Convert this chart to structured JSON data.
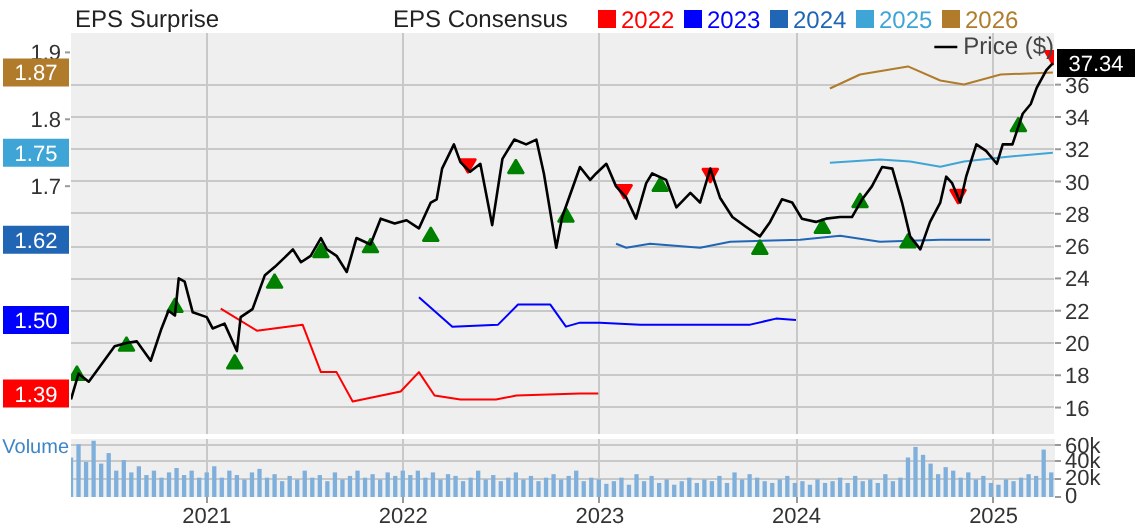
{
  "chart_data": [
    {
      "type": "line",
      "annotations": [
        "EPS Surprise",
        "EPS Consensus"
      ],
      "xlim": [
        "2020-04-24",
        "2025-04-25"
      ],
      "xticks": [
        "2021",
        "2022",
        "2023",
        "2024",
        "2025"
      ],
      "ylim": [
        14.3,
        39.2
      ],
      "yticks": [
        16,
        18,
        20,
        22,
        24,
        26,
        28,
        30,
        32,
        34,
        36,
        {
          "value": 37.34,
          "label": "37.34"
        }
      ],
      "y2lim": [
        1.328,
        1.929
      ],
      "y2ticks": [
        {
          "value": 1.39,
          "label": "1.39"
        },
        {
          "value": 1.5,
          "label": "1.50"
        },
        {
          "value": 1.62,
          "label": "1.62"
        },
        1.7,
        {
          "value": 1.75,
          "label": "1.75"
        },
        1.8,
        {
          "value": 1.87,
          "label": "1.87"
        },
        1.9
      ],
      "grid": true,
      "legend": "top",
      "tick_labels": "y",
      "series": [
        {
          "name": "2022",
          "axis": "y2",
          "color": "#ff0000",
          "x": [
            "2021-01-27",
            "2021-04-04",
            "2021-06-28",
            "2021-08-01",
            "2021-08-30",
            "2021-09-29",
            "2021-12-27",
            "2022-01-30",
            "2022-02-28",
            "2022-04-17",
            "2022-06-22",
            "2022-07-30",
            "2022-11-25",
            "2022-12-29"
          ],
          "values": [
            1.517,
            1.484,
            1.493,
            1.422,
            1.422,
            1.378,
            1.393,
            1.422,
            1.387,
            1.381,
            1.381,
            1.387,
            1.39,
            1.39
          ]
        },
        {
          "name": "2023",
          "axis": "y2",
          "color": "#0000ff",
          "x": [
            "2022-01-30",
            "2022-04-02",
            "2022-06-26",
            "2022-08-02",
            "2022-10-01",
            "2022-10-30",
            "2022-11-25",
            "2023-01-01",
            "2023-03-17",
            "2023-10-07",
            "2023-11-24",
            "2023-12-31"
          ],
          "values": [
            1.534,
            1.49,
            1.493,
            1.523,
            1.523,
            1.49,
            1.496,
            1.496,
            1.493,
            1.493,
            1.502,
            1.5
          ]
        },
        {
          "name": "2024",
          "axis": "y2",
          "color": "#2166b4",
          "x": [
            "2023-01-31",
            "2023-02-19",
            "2023-04-04",
            "2023-07-06",
            "2023-08-31",
            "2024-01-08",
            "2024-03-22",
            "2024-06-04",
            "2024-09-24",
            "2024-12-26"
          ],
          "values": [
            1.614,
            1.608,
            1.614,
            1.608,
            1.617,
            1.62,
            1.626,
            1.617,
            1.62,
            1.62
          ]
        },
        {
          "name": "2025",
          "axis": "y2",
          "color": "#3fa5d6",
          "x": [
            "2024-03-03",
            "2024-06-04",
            "2024-07-30",
            "2024-09-24",
            "2024-11-07",
            "2025-01-14",
            "2025-04-21"
          ],
          "values": [
            1.735,
            1.74,
            1.737,
            1.729,
            1.737,
            1.743,
            1.75
          ]
        },
        {
          "name": "2026",
          "axis": "y2",
          "color": "#b07c2c",
          "x": [
            "2024-03-03",
            "2024-04-28",
            "2024-07-26",
            "2024-09-24",
            "2024-11-07",
            "2025-01-14",
            "2025-04-21"
          ],
          "values": [
            1.846,
            1.867,
            1.879,
            1.858,
            1.852,
            1.867,
            1.87
          ]
        },
        {
          "type": "scatter",
          "marker": "triangle",
          "color": "#008000",
          "x": [
            "2020-05-05",
            "2020-08-05",
            "2020-11-03",
            "2021-02-22",
            "2021-05-07",
            "2021-08-01",
            "2021-11-01",
            "2022-02-21",
            "2022-07-29",
            "2022-10-30",
            "2023-04-23",
            "2023-10-25",
            "2024-02-18",
            "2024-04-28",
            "2024-07-26",
            "2025-02-16"
          ],
          "values": [
            18.0,
            19.8,
            22.2,
            18.7,
            23.7,
            25.6,
            25.9,
            26.6,
            30.8,
            27.8,
            29.7,
            25.8,
            27.1,
            28.7,
            26.2,
            33.4
          ]
        },
        {
          "type": "scatter",
          "marker": "triangle_down",
          "color": "#ff0000",
          "x": [
            "2022-05-01",
            "2023-02-15",
            "2023-07-25",
            "2024-10-27",
            "2025-04-21"
          ],
          "values": [
            31.1,
            29.5,
            30.5,
            29.2,
            37.8
          ]
        },
        {
          "name": "Price ($)",
          "color": "#000000",
          "x": [
            "2020-04-24",
            "2020-05-08",
            "2020-05-27",
            "2020-06-18",
            "2020-07-14",
            "2020-08-05",
            "2020-08-24",
            "2020-09-19",
            "2020-10-08",
            "2020-10-22",
            "2020-11-03",
            "2020-11-10",
            "2020-11-21",
            "2020-12-06",
            "2021-01-01",
            "2021-01-12",
            "2021-02-03",
            "2021-02-26",
            "2021-03-05",
            "2021-03-27",
            "2021-04-19",
            "2021-05-07",
            "2021-05-26",
            "2021-06-10",
            "2021-06-25",
            "2021-07-13",
            "2021-08-01",
            "2021-08-12",
            "2021-08-30",
            "2021-09-18",
            "2021-10-06",
            "2021-11-01",
            "2021-11-20",
            "2021-12-16",
            "2022-01-07",
            "2022-01-30",
            "2022-02-21",
            "2022-03-04",
            "2022-03-14",
            "2022-04-05",
            "2022-04-17",
            "2022-05-05",
            "2022-05-24",
            "2022-06-15",
            "2022-07-04",
            "2022-07-26",
            "2022-08-17",
            "2022-09-05",
            "2022-09-19",
            "2022-10-12",
            "2022-10-23",
            "2022-11-25",
            "2022-12-14",
            "2022-12-25",
            "2023-01-13",
            "2023-01-31",
            "2023-02-19",
            "2023-03-09",
            "2023-03-28",
            "2023-04-08",
            "2023-05-04",
            "2023-05-23",
            "2023-06-18",
            "2023-07-06",
            "2023-07-25",
            "2023-08-12",
            "2023-09-04",
            "2023-09-29",
            "2023-10-25",
            "2023-11-13",
            "2023-12-05",
            "2023-12-24",
            "2024-01-11",
            "2024-02-06",
            "2024-02-25",
            "2024-03-22",
            "2024-04-13",
            "2024-05-02",
            "2024-05-20",
            "2024-06-08",
            "2024-06-27",
            "2024-07-15",
            "2024-07-30",
            "2024-08-18",
            "2024-09-05",
            "2024-09-24",
            "2024-10-05",
            "2024-10-16",
            "2024-10-31",
            "2024-11-11",
            "2024-11-30",
            "2024-12-18",
            "2025-01-07",
            "2025-01-18",
            "2025-02-05",
            "2025-02-24",
            "2025-03-11",
            "2025-03-22",
            "2025-04-09",
            "2025-04-21"
          ],
          "values": [
            16.5,
            18.1,
            17.6,
            18.6,
            19.8,
            20.0,
            20.1,
            18.9,
            20.8,
            22.0,
            21.7,
            24.0,
            23.8,
            21.9,
            21.6,
            20.9,
            21.2,
            19.5,
            21.6,
            22.1,
            24.2,
            24.7,
            25.3,
            25.8,
            25.0,
            25.4,
            26.5,
            25.8,
            25.4,
            24.4,
            26.5,
            26.1,
            27.7,
            27.4,
            27.6,
            27.1,
            28.7,
            28.9,
            30.8,
            32.3,
            31.2,
            30.6,
            31.1,
            27.3,
            31.4,
            32.6,
            32.3,
            32.6,
            30.5,
            25.9,
            27.8,
            30.9,
            30.1,
            30.5,
            31.1,
            29.7,
            29.0,
            27.7,
            29.9,
            30.5,
            30.1,
            28.4,
            29.3,
            28.7,
            30.8,
            29.0,
            27.8,
            27.2,
            26.6,
            27.5,
            28.9,
            28.7,
            27.7,
            27.5,
            27.7,
            27.8,
            27.8,
            28.9,
            29.7,
            30.9,
            30.8,
            28.7,
            26.6,
            25.8,
            27.5,
            28.7,
            30.3,
            29.9,
            28.7,
            30.3,
            32.3,
            31.9,
            31.1,
            32.3,
            32.3,
            34.2,
            34.8,
            35.8,
            36.9,
            37.34
          ]
        }
      ]
    },
    {
      "type": "bar",
      "annotations": [
        "Volume"
      ],
      "color": "#7fb0dc",
      "xlim": [
        "2020-04-24",
        "2025-04-25"
      ],
      "xticks": [
        "2021",
        "2022",
        "2023",
        "2024",
        "2025"
      ],
      "ylim": [
        0,
        66000
      ],
      "yticks": [
        {
          "value": 0,
          "label": "0"
        },
        {
          "value": 20000,
          "label": "20k"
        },
        {
          "value": 40000,
          "label": "40k"
        },
        {
          "value": 60000,
          "label": "60k"
        }
      ],
      "grid": true,
      "x": [
        "2020-04-24",
        "2020-05-08",
        "2020-05-22",
        "2020-06-05",
        "2020-06-19",
        "2020-07-03",
        "2020-07-17",
        "2020-07-31",
        "2020-08-14",
        "2020-08-28",
        "2020-09-11",
        "2020-09-25",
        "2020-10-09",
        "2020-10-23",
        "2020-11-06",
        "2020-11-20",
        "2020-12-04",
        "2020-12-18",
        "2021-01-01",
        "2021-01-15",
        "2021-01-29",
        "2021-02-12",
        "2021-02-26",
        "2021-03-12",
        "2021-03-26",
        "2021-04-09",
        "2021-04-23",
        "2021-05-07",
        "2021-05-21",
        "2021-06-04",
        "2021-06-18",
        "2021-07-02",
        "2021-07-16",
        "2021-07-30",
        "2021-08-13",
        "2021-08-27",
        "2021-09-10",
        "2021-09-24",
        "2021-10-08",
        "2021-10-22",
        "2021-11-05",
        "2021-11-19",
        "2021-12-03",
        "2021-12-17",
        "2021-12-31",
        "2022-01-14",
        "2022-01-28",
        "2022-02-11",
        "2022-02-25",
        "2022-03-11",
        "2022-03-25",
        "2022-04-08",
        "2022-04-22",
        "2022-05-06",
        "2022-05-20",
        "2022-06-03",
        "2022-06-17",
        "2022-07-01",
        "2022-07-15",
        "2022-07-29",
        "2022-08-12",
        "2022-08-26",
        "2022-09-09",
        "2022-09-23",
        "2022-10-07",
        "2022-10-21",
        "2022-11-04",
        "2022-11-18",
        "2022-12-02",
        "2022-12-16",
        "2022-12-30",
        "2023-01-13",
        "2023-01-27",
        "2023-02-10",
        "2023-02-24",
        "2023-03-10",
        "2023-03-24",
        "2023-04-07",
        "2023-04-21",
        "2023-05-05",
        "2023-05-19",
        "2023-06-02",
        "2023-06-16",
        "2023-06-30",
        "2023-07-14",
        "2023-07-28",
        "2023-08-11",
        "2023-08-25",
        "2023-09-08",
        "2023-09-22",
        "2023-10-06",
        "2023-10-20",
        "2023-11-03",
        "2023-11-17",
        "2023-12-01",
        "2023-12-15",
        "2023-12-29",
        "2024-01-12",
        "2024-01-26",
        "2024-02-09",
        "2024-02-23",
        "2024-03-08",
        "2024-03-22",
        "2024-04-05",
        "2024-04-19",
        "2024-05-03",
        "2024-05-17",
        "2024-05-31",
        "2024-06-14",
        "2024-06-28",
        "2024-07-12",
        "2024-07-26",
        "2024-08-09",
        "2024-08-23",
        "2024-09-06",
        "2024-09-20",
        "2024-10-04",
        "2024-10-18",
        "2024-11-01",
        "2024-11-15",
        "2024-11-29",
        "2024-12-13",
        "2024-12-27",
        "2025-01-10",
        "2025-01-24",
        "2025-02-07",
        "2025-02-21",
        "2025-03-07",
        "2025-03-21",
        "2025-04-04",
        "2025-04-18"
      ],
      "values": [
        45000,
        60000,
        40000,
        64000,
        38000,
        50000,
        30000,
        42000,
        28000,
        35000,
        25000,
        30000,
        22000,
        28000,
        33000,
        25000,
        30000,
        22000,
        28000,
        35000,
        22000,
        30000,
        25000,
        20000,
        28000,
        32000,
        22000,
        26000,
        18000,
        24000,
        20000,
        30000,
        22000,
        25000,
        18000,
        28000,
        20000,
        24000,
        30000,
        22000,
        26000,
        20000,
        28000,
        24000,
        30000,
        25000,
        30000,
        22000,
        28000,
        20000,
        26000,
        24000,
        18000,
        22000,
        30000,
        20000,
        25000,
        18000,
        22000,
        28000,
        20000,
        24000,
        18000,
        22000,
        26000,
        20000,
        24000,
        30000,
        18000,
        22000,
        20000,
        15000,
        18000,
        22000,
        14000,
        26000,
        18000,
        24000,
        16000,
        20000,
        14000,
        18000,
        22000,
        16000,
        20000,
        18000,
        24000,
        16000,
        28000,
        20000,
        26000,
        22000,
        18000,
        16000,
        20000,
        24000,
        16000,
        18000,
        14000,
        20000,
        16000,
        18000,
        22000,
        16000,
        24000,
        18000,
        20000,
        16000,
        26000,
        18000,
        22000,
        45000,
        57000,
        48000,
        38000,
        26000,
        34000,
        30000,
        22000,
        28000,
        20000,
        24000,
        16000,
        14000,
        20000,
        18000,
        22000,
        26000,
        24000,
        54000,
        28000
      ]
    }
  ]
}
